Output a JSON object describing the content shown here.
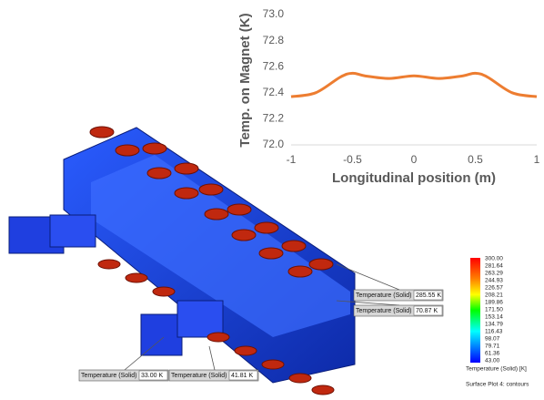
{
  "chart_data": {
    "type": "line",
    "x_label": "Longitudinal position (m)",
    "y_label": "Temp. on Magnet (K)",
    "x": [
      -1,
      -0.8,
      -0.6,
      -0.5,
      -0.4,
      -0.2,
      0,
      0.2,
      0.4,
      0.5,
      0.6,
      0.8,
      1
    ],
    "series": [
      {
        "color": "#ed7d31",
        "values": [
          72.37,
          72.4,
          72.52,
          72.55,
          72.53,
          72.51,
          72.53,
          72.51,
          72.53,
          72.55,
          72.52,
          72.4,
          72.37
        ]
      }
    ],
    "xlim": [
      -1,
      1
    ],
    "xticks": [
      -1,
      -0.5,
      0,
      0.5,
      1
    ],
    "ylim": [
      72,
      73
    ],
    "yticks": [
      {
        "value": 72,
        "label": "72.0"
      },
      {
        "value": 72.2,
        "label": "72.2"
      },
      {
        "value": 72.4,
        "label": "72.4"
      },
      {
        "value": 72.6,
        "label": "72.6"
      },
      {
        "value": 72.8,
        "label": "72.8"
      },
      {
        "value": 73,
        "label": "73.0"
      }
    ],
    "grid": false
  },
  "colorbar": {
    "labels": [
      "300.00",
      "281.64",
      "263.29",
      "244.93",
      "226.57",
      "208.21",
      "189.86",
      "171.50",
      "153.14",
      "134.79",
      "116.43",
      "98.07",
      "79.71",
      "61.36",
      "43.00"
    ],
    "title": "Temperature (Solid) [K]",
    "caption": "Surface Plot 4: contours"
  },
  "probes": [
    {
      "label": "Temperature (Solid)",
      "value": "285.55 K"
    },
    {
      "label": "Temperature (Solid)",
      "value": "70.87 K"
    },
    {
      "label": "Temperature (Solid)",
      "value": "33.00 K"
    },
    {
      "label": "Temperature (Solid)",
      "value": "41.81 K"
    }
  ]
}
